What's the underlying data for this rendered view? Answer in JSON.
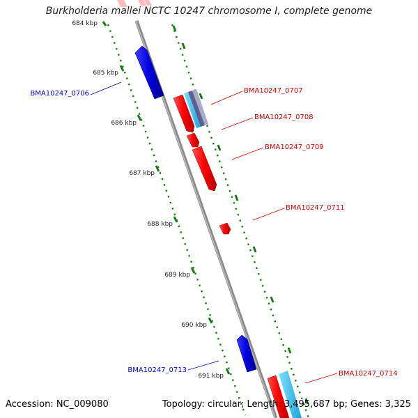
{
  "title": "Burkholderia mallei NCTC 10247 chromosome I, complete genome",
  "footer": {
    "accession": "Accession: NC_009080",
    "summary": "Topology: circular; Length: 3,495,687 bp; Genes: 3,325"
  },
  "ticks": [
    "684 kbp",
    "685 kbp",
    "686 kbp",
    "687 kbp",
    "688 kbp",
    "689 kbp",
    "690 kbp",
    "691 kbp"
  ],
  "genes": [
    {
      "name": "BMA10247_0706",
      "strand": "reverse",
      "color": "#0000cc"
    },
    {
      "name": "BMA10247_0707",
      "strand": "forward",
      "color": "#cc0000"
    },
    {
      "name": "BMA10247_0708",
      "strand": "forward",
      "color": "#cc0000"
    },
    {
      "name": "BMA10247_0709",
      "strand": "forward",
      "color": "#cc0000"
    },
    {
      "name": "BMA10247_0711",
      "strand": "forward",
      "color": "#cc0000"
    },
    {
      "name": "BMA10247_0713",
      "strand": "reverse",
      "color": "#0000cc"
    },
    {
      "name": "BMA10247_0714",
      "strand": "forward",
      "color": "#cc0000"
    }
  ],
  "colors": {
    "backbone": "#8a8a8a",
    "tick_dots": "#1a7a1a",
    "forward_gene": "#ff0000",
    "reverse_gene": "#0000e0",
    "cyan_gene": "#22b8e8",
    "slate_gene": "#7a7aa0"
  }
}
